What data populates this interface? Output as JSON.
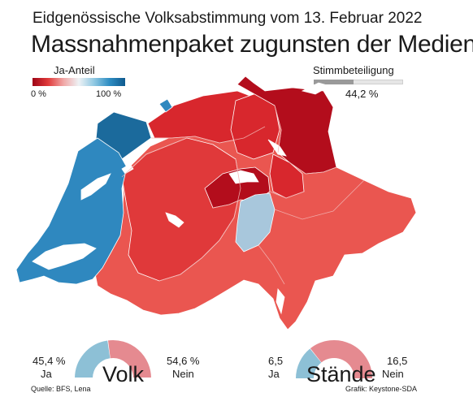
{
  "header": {
    "supertitle": "Eidgenössische Volksabstimmung vom 13. Februar 2022",
    "title": "Massnahmenpaket zugunsten der Medien"
  },
  "legend": {
    "label": "Ja-Anteil",
    "min": "0 %",
    "max": "100 %"
  },
  "turnout": {
    "label": "Stimmbeteiligung",
    "value_text": "44,2 %",
    "value": 44.2
  },
  "map": {
    "colors": {
      "deep_red": "#b30d1c",
      "red": "#d8272d",
      "mid_red": "#e0393a",
      "light_red": "#ea5650",
      "light_blue": "#a8c7dc",
      "blue": "#2f88bf",
      "dark_blue": "#1b6a9c",
      "lake": "#ffffff"
    }
  },
  "results": {
    "volk": {
      "label": "Volk",
      "ja_pct": "45,4 %",
      "ja_word": "Ja",
      "nein_pct": "54,6 %",
      "nein_word": "Nein",
      "ja_value": 45.4,
      "ja_color": "#8dc0d6",
      "nein_color": "#e58a90"
    },
    "staende": {
      "label": "Stände",
      "ja_value_text": "6,5",
      "ja_word": "Ja",
      "nein_value_text": "16,5",
      "nein_word": "Nein",
      "ja_value": 6.5,
      "nein_value": 16.5,
      "ja_color": "#8dc0d6",
      "nein_color": "#e58a90"
    }
  },
  "footer": {
    "source": "Quelle: BFS, Lena",
    "credit": "Grafik: Keystone-SDA"
  }
}
